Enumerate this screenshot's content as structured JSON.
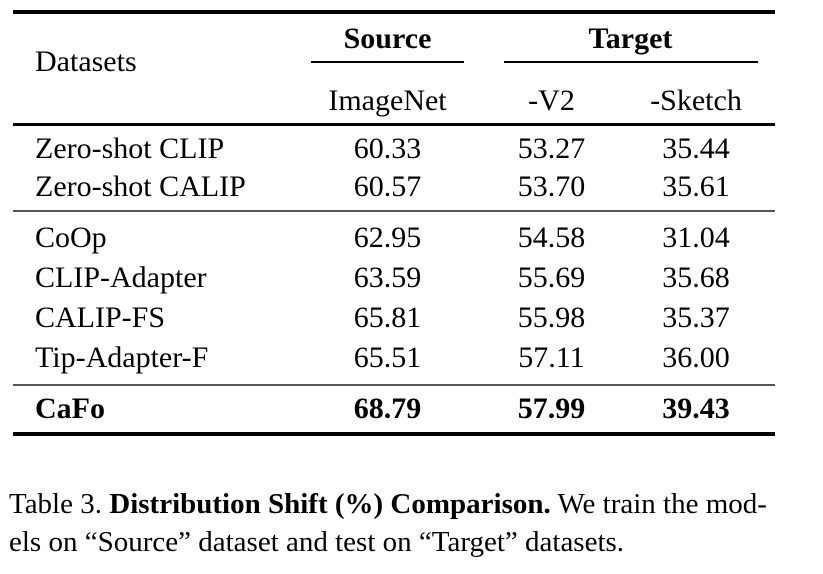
{
  "table": {
    "header": {
      "row_label": "Datasets",
      "source_group": "Source",
      "target_group": "Target",
      "source_cols": [
        "ImageNet"
      ],
      "target_cols": [
        "-V2",
        "-Sketch"
      ]
    },
    "rows": [
      {
        "name": "Zero-shot CLIP",
        "imagenet": "60.33",
        "v2": "53.27",
        "sketch": "35.44"
      },
      {
        "name": "Zero-shot CALIP",
        "imagenet": "60.57",
        "v2": "53.70",
        "sketch": "35.61"
      },
      {
        "name": "CoOp",
        "imagenet": "62.95",
        "v2": "54.58",
        "sketch": "31.04"
      },
      {
        "name": "CLIP-Adapter",
        "imagenet": "63.59",
        "v2": "55.69",
        "sketch": "35.68"
      },
      {
        "name": "CALIP-FS",
        "imagenet": "65.81",
        "v2": "55.98",
        "sketch": "35.37"
      },
      {
        "name": "Tip-Adapter-F",
        "imagenet": "65.51",
        "v2": "57.11",
        "sketch": "36.00"
      },
      {
        "name": "CaFo",
        "imagenet": "68.79",
        "v2": "57.99",
        "sketch": "39.43"
      }
    ]
  },
  "caption": {
    "label": "Table 3.",
    "title": "Distribution Shift (%) Comparison.",
    "line1_rest": "We train the mod-",
    "line2": "els on “Source” dataset and test on “Target” datasets."
  },
  "chart_data": {
    "type": "table",
    "title": "Table 3. Distribution Shift (%) Comparison",
    "columns": [
      "Datasets",
      "Source: ImageNet",
      "Target: -V2",
      "Target: -Sketch"
    ],
    "rows": [
      [
        "Zero-shot CLIP",
        60.33,
        53.27,
        35.44
      ],
      [
        "Zero-shot CALIP",
        60.57,
        53.7,
        35.61
      ],
      [
        "CoOp",
        62.95,
        54.58,
        31.04
      ],
      [
        "CLIP-Adapter",
        63.59,
        55.69,
        35.68
      ],
      [
        "CALIP-FS",
        65.81,
        55.98,
        35.37
      ],
      [
        "Tip-Adapter-F",
        65.51,
        57.11,
        36.0
      ],
      [
        "CaFo",
        68.79,
        57.99,
        39.43
      ]
    ],
    "colors": {
      "text": "#000000",
      "heavy_rule": "#000000",
      "light_rule": "#565656",
      "background": "#ffffff"
    }
  }
}
